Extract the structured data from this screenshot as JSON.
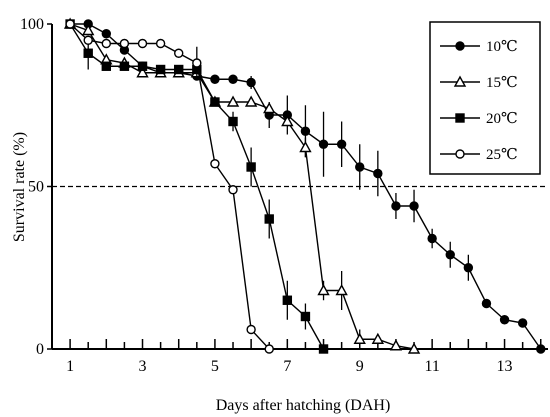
{
  "chart_data": {
    "type": "line",
    "title": "",
    "xlabel": "Days after hatching (DAH)",
    "ylabel": "Survival rate (%)",
    "xlim": [
      0.5,
      14.2
    ],
    "ylim": [
      0,
      100
    ],
    "x_ticks": [
      1,
      3,
      5,
      7,
      9,
      11,
      13
    ],
    "y_ticks": [
      0,
      50,
      100
    ],
    "reference_line": {
      "y": 50,
      "style": "dashed"
    },
    "legend_position": "top-right",
    "grid": false,
    "series": [
      {
        "name": "10℃",
        "marker": "circle-filled",
        "x": [
          1,
          1.5,
          2,
          2.5,
          3,
          3.5,
          4,
          4.5,
          5,
          5.5,
          6,
          6.5,
          7,
          7.5,
          8,
          8.5,
          9,
          9.5,
          10,
          10.5,
          11,
          11.5,
          12,
          12.5,
          13,
          13.5,
          14
        ],
        "y": [
          100,
          100,
          97,
          92,
          87,
          85,
          85,
          84,
          83,
          83,
          82,
          72,
          72,
          67,
          63,
          63,
          56,
          54,
          44,
          44,
          34,
          29,
          25,
          14,
          9,
          8,
          0
        ],
        "err": [
          0,
          0,
          0,
          0,
          0,
          0,
          0,
          0,
          0,
          0,
          2,
          4,
          6,
          8,
          10,
          7,
          7,
          7,
          4,
          5,
          3,
          4,
          4,
          0,
          0,
          0,
          0
        ]
      },
      {
        "name": "15℃",
        "marker": "triangle-open",
        "x": [
          1,
          1.5,
          2,
          2.5,
          3,
          3.5,
          4,
          4.5,
          5,
          5.5,
          6,
          6.5,
          7,
          7.5,
          8,
          8.5,
          9,
          9.5,
          10,
          10.5
        ],
        "y": [
          100,
          98,
          89,
          88,
          85,
          85,
          85,
          85,
          76,
          76,
          76,
          74,
          70,
          62,
          18,
          18,
          3,
          3,
          1,
          0
        ],
        "err": [
          0,
          0,
          0,
          0,
          0,
          0,
          0,
          0,
          0,
          0,
          0,
          0,
          0,
          3,
          3,
          6,
          3,
          0,
          0,
          0
        ]
      },
      {
        "name": "20℃",
        "marker": "square-filled",
        "x": [
          1,
          1.5,
          2,
          2.5,
          3,
          3.5,
          4,
          4.5,
          5,
          5.5,
          6,
          6.5,
          7,
          7.5,
          8
        ],
        "y": [
          100,
          91,
          87,
          87,
          87,
          86,
          86,
          86,
          76,
          70,
          56,
          40,
          15,
          10,
          0
        ],
        "err": [
          0,
          5,
          0,
          0,
          0,
          0,
          0,
          0,
          0,
          3,
          6,
          6,
          6,
          4,
          0
        ]
      },
      {
        "name": "25℃",
        "marker": "circle-open",
        "x": [
          1,
          1.5,
          2,
          2.5,
          3,
          3.5,
          4,
          4.5,
          5,
          5.5,
          6,
          6.5
        ],
        "y": [
          100,
          95,
          94,
          94,
          94,
          94,
          91,
          88,
          57,
          49,
          6,
          0
        ],
        "err": [
          0,
          0,
          0,
          0,
          0,
          0,
          0,
          5,
          0,
          0,
          0,
          0
        ]
      }
    ]
  }
}
